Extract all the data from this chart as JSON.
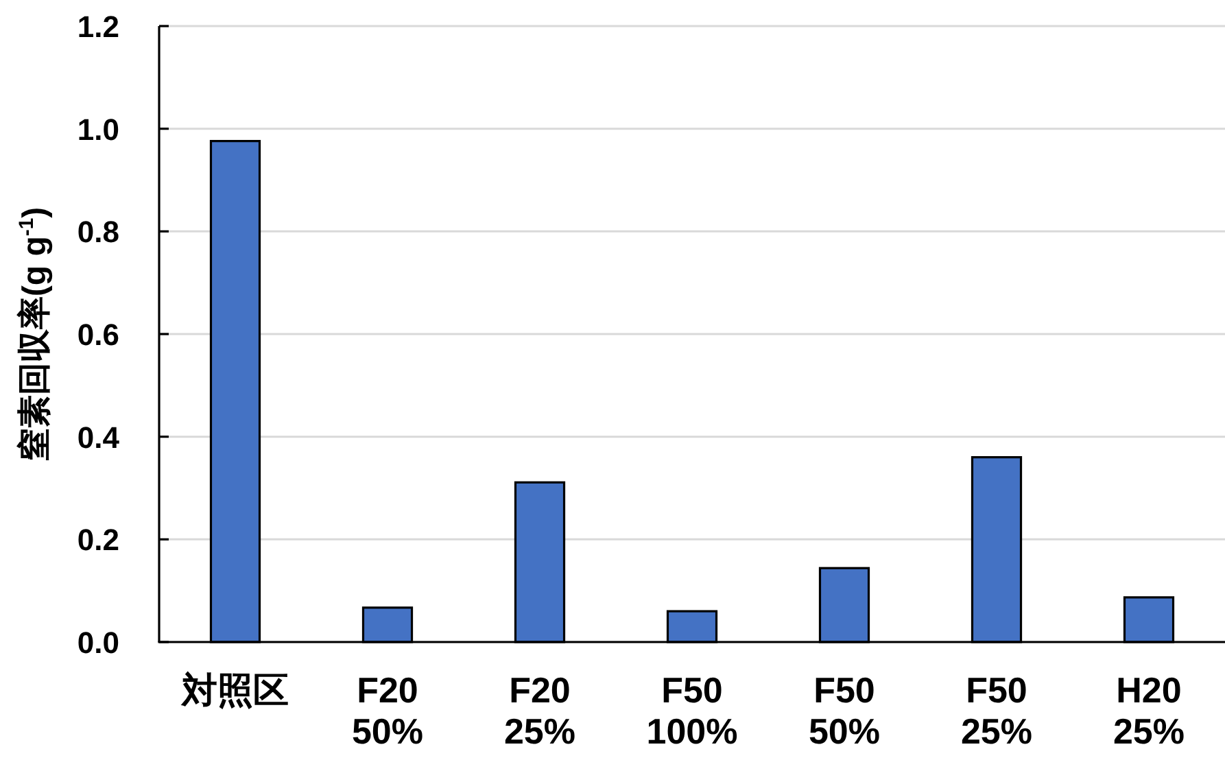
{
  "chart_data": {
    "type": "bar",
    "ylabel": "窒素回収率(g g$^{-1}$)",
    "categories": [
      "対照区",
      "F20 50%",
      "F20 25%",
      "F50 100%",
      "F50 50%",
      "F50 25%",
      "H20 25%"
    ],
    "values": [
      0.976,
      0.067,
      0.311,
      0.06,
      0.144,
      0.36,
      0.087
    ],
    "color": "#4472c4",
    "ylim": [
      0,
      1.2
    ],
    "yticks": [
      {
        "value": 0,
        "label": "0.0"
      },
      0.2,
      0.4,
      0.6,
      0.8,
      {
        "value": 1,
        "label": "1.0"
      },
      1.2
    ],
    "grid": "y"
  }
}
